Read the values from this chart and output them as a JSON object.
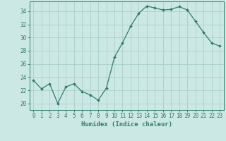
{
  "x": [
    0,
    1,
    2,
    3,
    4,
    5,
    6,
    7,
    8,
    9,
    10,
    11,
    12,
    13,
    14,
    15,
    16,
    17,
    18,
    19,
    20,
    21,
    22,
    23
  ],
  "y": [
    23.5,
    22.2,
    23.0,
    20.0,
    22.5,
    23.0,
    21.8,
    21.3,
    20.5,
    22.3,
    27.0,
    29.2,
    31.7,
    33.7,
    34.8,
    34.5,
    34.2,
    34.3,
    34.7,
    34.2,
    32.5,
    30.8,
    29.2,
    28.7
  ],
  "line_color": "#2e7d6e",
  "marker": "D",
  "marker_size": 2.0,
  "bg_color": "#cce8e4",
  "grid_color": "#aacfcb",
  "xlabel": "Humidex (Indice chaleur)",
  "xlim": [
    -0.5,
    23.5
  ],
  "ylim": [
    19.0,
    35.5
  ],
  "yticks": [
    20,
    22,
    24,
    26,
    28,
    30,
    32,
    34
  ],
  "xticks": [
    0,
    1,
    2,
    3,
    4,
    5,
    6,
    7,
    8,
    9,
    10,
    11,
    12,
    13,
    14,
    15,
    16,
    17,
    18,
    19,
    20,
    21,
    22,
    23
  ],
  "xtick_labels": [
    "0",
    "1",
    "2",
    "3",
    "4",
    "5",
    "6",
    "7",
    "8",
    "9",
    "10",
    "11",
    "12",
    "13",
    "14",
    "15",
    "16",
    "17",
    "18",
    "19",
    "20",
    "21",
    "22",
    "23"
  ],
  "axis_color": "#2e7d6e",
  "tick_color": "#2e7d6e",
  "label_fontsize": 6.5,
  "tick_fontsize": 5.5,
  "linewidth": 0.9
}
